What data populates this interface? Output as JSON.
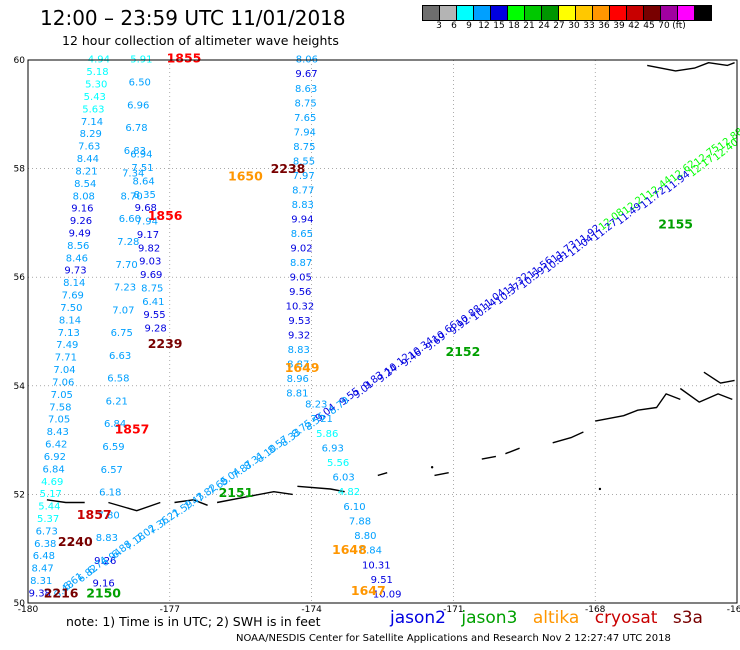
{
  "title": "12:00 – 23:59 UTC 11/01/2018",
  "subtitle": "12 hour collection of altimeter wave heights",
  "colorbar": {
    "colors": [
      "#6e6e6e",
      "#b4b4b4",
      "#00ffff",
      "#00a0ff",
      "#0000e0",
      "#00ff00",
      "#00c800",
      "#009600",
      "#ffff00",
      "#ffc800",
      "#ff9600",
      "#ff0000",
      "#c80000",
      "#780000",
      "#a000a0",
      "#ff00ff",
      "#000000"
    ],
    "labels": [
      "3",
      "6",
      "9",
      "12",
      "15",
      "18",
      "21",
      "24",
      "27",
      "30",
      "33",
      "36",
      "39",
      "42",
      "45",
      "70",
      "(ft)"
    ]
  },
  "axes": {
    "x_ticks": [
      "-180",
      "-177",
      "-174",
      "-171",
      "-168",
      "-165"
    ],
    "y_ticks": [
      "60",
      "58",
      "56",
      "54",
      "52",
      "50"
    ]
  },
  "note": "note: 1) Time is in UTC; 2) SWH is in feet",
  "legend": [
    {
      "label": "jason2",
      "color": "#0000e0"
    },
    {
      "label": "jason3",
      "color": "#00a000"
    },
    {
      "label": "altika",
      "color": "#ff9600"
    },
    {
      "label": "cryosat",
      "color": "#c80000"
    },
    {
      "label": "s3a",
      "color": "#780000"
    }
  ],
  "credit": "NOAA/NESDIS Center for Satellite Applications and Research   Nov  2 12:27:47 UTC 2018",
  "chart_data": {
    "type": "map",
    "xlim": [
      -180,
      -165
    ],
    "ylim": [
      50,
      60
    ],
    "grid": true,
    "time_labels": [
      {
        "text": "1855",
        "color": "#ff0000",
        "lon": -176.7,
        "lat": 59.95
      },
      {
        "text": "2238",
        "color": "#780000",
        "lon": -174.5,
        "lat": 57.92
      },
      {
        "text": "1650",
        "color": "#ff9600",
        "lon": -175.4,
        "lat": 57.78
      },
      {
        "text": "1856",
        "color": "#ff0000",
        "lon": -177.1,
        "lat": 57.05
      },
      {
        "text": "2155",
        "color": "#00a000",
        "lon": -166.3,
        "lat": 56.9
      },
      {
        "text": "2239",
        "color": "#780000",
        "lon": -177.1,
        "lat": 54.7
      },
      {
        "text": "2152",
        "color": "#00a000",
        "lon": -170.8,
        "lat": 54.55
      },
      {
        "text": "1649",
        "color": "#ff9600",
        "lon": -174.2,
        "lat": 54.25
      },
      {
        "text": "1857",
        "color": "#ff0000",
        "lon": -177.8,
        "lat": 53.12
      },
      {
        "text": "2151",
        "color": "#00a000",
        "lon": -175.6,
        "lat": 51.95
      },
      {
        "text": "1857",
        "color": "#c80000",
        "lon": -178.6,
        "lat": 51.55
      },
      {
        "text": "2240",
        "color": "#780000",
        "lon": -179.0,
        "lat": 51.05
      },
      {
        "text": "1648",
        "color": "#ff9600",
        "lon": -173.2,
        "lat": 50.9
      },
      {
        "text": "1647",
        "color": "#ff9600",
        "lon": -172.8,
        "lat": 50.15
      },
      {
        "text": "2150",
        "color": "#00a000",
        "lon": -178.4,
        "lat": 50.1
      },
      {
        "text": "2216",
        "color": "#780000",
        "lon": -179.3,
        "lat": 50.1
      }
    ],
    "tracks": [
      {
        "satellite": "cryosat_west",
        "start": [
          -178.5,
          59.95
        ],
        "end": [
          -179.75,
          50.12
        ],
        "values": [
          "4.94",
          "5.18",
          "5.30",
          "5.43",
          "5.63",
          "7.14",
          "8.29",
          "7.63",
          "8.44",
          "8.21",
          "8.54",
          "8.08",
          "9.16",
          "9.26",
          "9.49",
          "8.56",
          "8.46",
          "9.73",
          "8.14",
          "7.69",
          "7.50",
          "8.14",
          "7.13",
          "7.49",
          "7.71",
          "7.04",
          "7.06",
          "7.05",
          "7.58",
          "7.05",
          "8.43",
          "6.42",
          "6.92",
          "6.84",
          "4.69",
          "5.17",
          "5.44",
          "5.37",
          "6.73",
          "6.38",
          "6.48",
          "8.47",
          "8.31",
          "9.38"
        ]
      },
      {
        "satellite": "cryosat_mid",
        "start": [
          -177.6,
          59.95
        ],
        "end": [
          -178.4,
          50.3
        ],
        "values": [
          "5.91",
          "6.50",
          "6.96",
          "6.78",
          "6.83",
          "7.34",
          "8.70",
          "6.60",
          "7.28",
          "7.70",
          "7.23",
          "7.07",
          "6.75",
          "6.63",
          "6.58",
          "6.21",
          "6.84",
          "6.59",
          "6.57",
          "6.18",
          "7.80",
          "8.83",
          "9.26",
          "9.16"
        ]
      },
      {
        "satellite": "s3a_west",
        "start": [
          -177.6,
          58.2
        ],
        "end": [
          -177.3,
          55.0
        ],
        "values": [
          "6.94",
          "7.51",
          "8.64",
          "8.35",
          "9.68",
          "7.94",
          "9.17",
          "9.82",
          "9.03",
          "9.69",
          "8.75",
          "6.41",
          "9.55",
          "9.28"
        ]
      },
      {
        "satellite": "jason2_mid",
        "start": [
          -174.1,
          59.95
        ],
        "end": [
          -174.3,
          53.8
        ],
        "values": [
          "8.06",
          "9.67",
          "8.63",
          "8.75",
          "7.65",
          "7.94",
          "8.75",
          "8.55",
          "7.97",
          "8.77",
          "8.83",
          "9.94",
          "8.65",
          "9.02",
          "8.87",
          "9.05",
          "9.56",
          "10.32",
          "9.53",
          "9.32",
          "8.83",
          "8.87",
          "8.96",
          "8.81"
        ]
      },
      {
        "satellite": "jason3_southeast",
        "start": [
          -173.9,
          53.6
        ],
        "end": [
          -172.4,
          50.1
        ],
        "values": [
          "8.23",
          "7.21",
          "5.86",
          "6.93",
          "5.56",
          "6.03",
          "4.82",
          "6.10",
          "7.88",
          "8.80",
          "8.84",
          "10.31",
          "9.51",
          "10.09"
        ]
      },
      {
        "satellite": "jason2_diagonal",
        "start": [
          -179.2,
          50.2
        ],
        "end": [
          -165.1,
          58.5
        ],
        "values": [
          "6.48",
          "6.82",
          "6.94",
          "7.18",
          "7.36",
          "7.59",
          "7.82",
          "8.04",
          "8.31",
          "8.57",
          "8.75",
          "9.04",
          "9.55",
          "9.83",
          "10.12",
          "10.34",
          "10.66",
          "10.88",
          "11.04",
          "11.32",
          "11.56",
          "11.73",
          "11.92",
          "12.08",
          "12.21",
          "12.44",
          "12.62",
          "12.75",
          "12.88"
        ]
      },
      {
        "satellite": "jason3_diagonal",
        "start": [
          -179.0,
          50.35
        ],
        "end": [
          -165.2,
          58.3
        ],
        "values": [
          "6.61",
          "6.74",
          "6.88",
          "7.02",
          "7.21",
          "7.43",
          "7.65",
          "7.87",
          "8.10",
          "8.33",
          "8.56",
          "8.79",
          "9.01",
          "9.24",
          "9.46",
          "9.69",
          "9.92",
          "10.14",
          "10.37",
          "10.59",
          "10.81",
          "11.04",
          "11.27",
          "11.49",
          "11.72",
          "11.94",
          "12.17",
          "12.40"
        ]
      }
    ]
  }
}
